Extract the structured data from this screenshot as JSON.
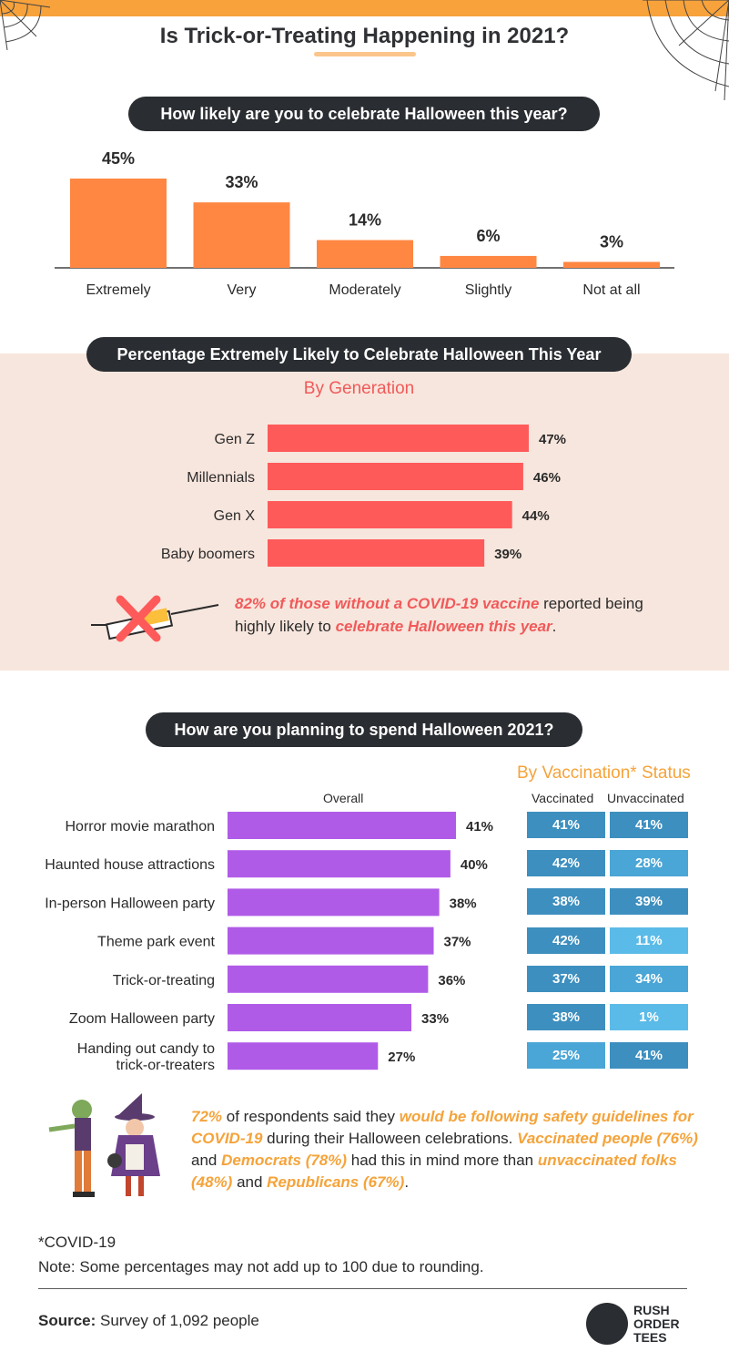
{
  "title": "Is Trick-or-Treating Happening in 2021?",
  "colors": {
    "orange_bar": "#ff8742",
    "red_bar": "#ff5a5a",
    "purple_bar": "#b05be8",
    "dark_pill": "#2a2d31",
    "panel_bg": "#f7e6dd",
    "accent_orange": "#f5a33a",
    "accent_red": "#f05a5a",
    "vacc_dark": "#3d8fbf",
    "vacc_mid": "#4aa6d6",
    "vacc_light": "#5bbbe8"
  },
  "section1": {
    "heading": "How likely are you to celebrate Halloween this year?"
  },
  "section2": {
    "heading": "Percentage Extremely Likely to Celebrate Halloween This Year",
    "subheading": "By Generation"
  },
  "section3": {
    "heading": "How are you planning to spend Halloween 2021?",
    "subheading": "By Vaccination* Status",
    "col_overall": "Overall",
    "col_vaccinated": "Vaccinated",
    "col_unvaccinated": "Unvaccinated"
  },
  "chart_data": [
    {
      "type": "bar",
      "categories": [
        "Extremely",
        "Very",
        "Moderately",
        "Slightly",
        "Not at all"
      ],
      "values": [
        45,
        33,
        14,
        6,
        3
      ],
      "value_labels": [
        "45%",
        "33%",
        "14%",
        "6%",
        "3%"
      ],
      "title": "How likely are you to celebrate Halloween this year?",
      "ylim": [
        0,
        45
      ],
      "grid": false
    },
    {
      "type": "bar",
      "orientation": "horizontal",
      "categories": [
        "Gen Z",
        "Millennials",
        "Gen X",
        "Baby boomers"
      ],
      "values": [
        47,
        46,
        44,
        39
      ],
      "value_labels": [
        "47%",
        "46%",
        "44%",
        "39%"
      ],
      "title": "Percentage Extremely Likely to Celebrate Halloween This Year",
      "subtitle": "By Generation",
      "xlim": [
        0,
        47
      ],
      "grid": false
    },
    {
      "type": "bar",
      "orientation": "horizontal",
      "categories": [
        "Horror movie marathon",
        "Haunted house attractions",
        "In-person Halloween party",
        "Theme park event",
        "Trick-or-treating",
        "Zoom Halloween party",
        "Handing out candy to trick-or-treaters"
      ],
      "series": [
        {
          "name": "Overall",
          "values": [
            41,
            40,
            38,
            37,
            36,
            33,
            27
          ],
          "labels": [
            "41%",
            "40%",
            "38%",
            "37%",
            "36%",
            "33%",
            "27%"
          ]
        },
        {
          "name": "Vaccinated",
          "values": [
            41,
            42,
            38,
            42,
            37,
            38,
            25
          ],
          "labels": [
            "41%",
            "42%",
            "38%",
            "42%",
            "37%",
            "38%",
            "25%"
          ]
        },
        {
          "name": "Unvaccinated",
          "values": [
            41,
            28,
            39,
            11,
            34,
            1,
            41
          ],
          "labels": [
            "41%",
            "28%",
            "39%",
            "11%",
            "34%",
            "1%",
            "41%"
          ]
        }
      ],
      "title": "How are you planning to spend Halloween 2021?",
      "subtitle": "By Vaccination* Status",
      "xlim": [
        0,
        41
      ],
      "grid": false
    }
  ],
  "notes": {
    "vaccine_note": {
      "hl1": "82% of those without a COVID-19 vaccine",
      "t1": " reported being highly likely to ",
      "hl2": "celebrate Halloween this year",
      "t2": "."
    },
    "safety_note": {
      "hl1": "72%",
      "t1": " of respondents said they ",
      "hl2": "would be following safety guidelines for COVID-19",
      "t2": " during their Halloween celebrations. ",
      "hl3": "Vaccinated people (76%)",
      "t3": " and ",
      "hl4": "Democrats (78%)",
      "t4": " had this in mind more than ",
      "hl5": "unvaccinated folks (48%)",
      "t5": " and ",
      "hl6": "Republicans (67%)",
      "t6": "."
    }
  },
  "footnotes": {
    "asterisk": "*COVID-19",
    "rounding": "Note: Some percentages may not add up to 100 due to rounding."
  },
  "source": {
    "label": "Source:",
    "text": " Survey of 1,092 people"
  },
  "logo": {
    "line1": "RUSH",
    "line2": "ORDER",
    "line3": "TEES"
  },
  "icons": [
    "cobweb-icon",
    "syringe-crossed-icon",
    "zombie-and-witch-illustration",
    "rush-order-tees-logo-icon"
  ]
}
